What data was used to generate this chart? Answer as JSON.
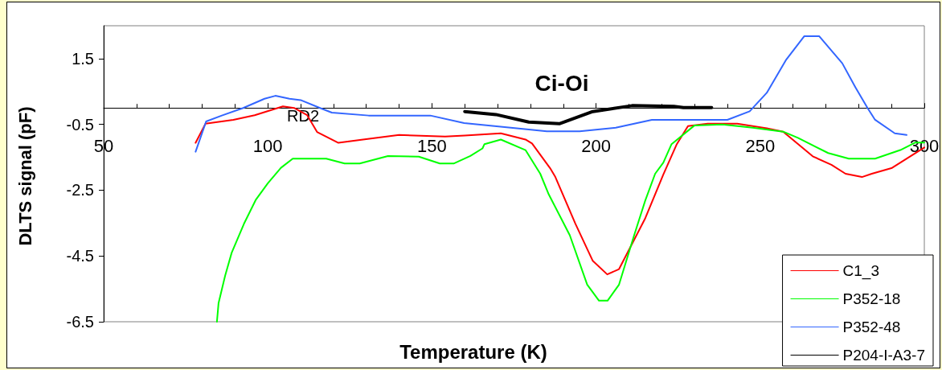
{
  "chart_data": {
    "type": "line",
    "xlabel": "Temperature (K)",
    "ylabel": "DLTS signal (pF)",
    "xlim": [
      50,
      300
    ],
    "xticks": [
      50,
      100,
      150,
      200,
      250,
      300
    ],
    "ylim": [
      -6.5,
      2.5
    ],
    "yticks": [
      -6.5,
      -4.5,
      -2.5,
      -0.5,
      1.5
    ],
    "grid": false,
    "legend": "bottom right",
    "marker": "none",
    "line_style": "solid",
    "annotations": [
      "RD2",
      "Ci-Oi"
    ],
    "series": [
      {
        "name": "C1_3",
        "color": "#ff0000",
        "x": [
          78,
          81,
          89.5,
          96,
          104.6,
          108,
          112,
          115,
          121.5,
          129,
          140,
          154,
          160,
          166,
          171,
          178.5,
          180.5,
          186,
          187.6,
          193.7,
          199,
          203.4,
          207,
          215,
          220.5,
          224.6,
          228,
          234,
          243,
          252,
          257,
          266,
          271.7,
          276,
          281,
          284,
          290,
          300
        ],
        "values": [
          -1.06,
          -0.48,
          -0.36,
          -0.22,
          0.05,
          0,
          -0.22,
          -0.73,
          -1.06,
          -0.96,
          -0.82,
          -0.87,
          -0.84,
          -0.8,
          -0.77,
          -0.96,
          -1.08,
          -1.83,
          -2.1,
          -3.52,
          -4.65,
          -5.06,
          -4.9,
          -3.35,
          -2.02,
          -1.1,
          -0.55,
          -0.48,
          -0.48,
          -0.62,
          -0.72,
          -1.47,
          -1.73,
          -2.0,
          -2.1,
          -2.0,
          -1.83,
          -1.2
        ]
      },
      {
        "name": "P352-18",
        "color": "#00ff00",
        "x": [
          84.5,
          85,
          87,
          89,
          92.7,
          96.3,
          100,
          104,
          107.6,
          117.8,
          123.4,
          128,
          136.6,
          146,
          152.4,
          156.6,
          161.7,
          165.4,
          166,
          171,
          178.5,
          183,
          185.6,
          192,
          197.3,
          200.9,
          203.5,
          207,
          211.6,
          215,
          218,
          220.5,
          223,
          230,
          238.5,
          247.7,
          257,
          261.5,
          270.7,
          277,
          285,
          292.7,
          297.3,
          300
        ],
        "values": [
          -6.5,
          -5.93,
          -5.1,
          -4.4,
          -3.53,
          -2.8,
          -2.29,
          -1.82,
          -1.54,
          -1.54,
          -1.69,
          -1.69,
          -1.46,
          -1.48,
          -1.69,
          -1.69,
          -1.46,
          -1.23,
          -1.1,
          -0.96,
          -1.28,
          -2.0,
          -2.63,
          -3.87,
          -5.37,
          -5.86,
          -5.86,
          -5.37,
          -3.87,
          -2.81,
          -2.0,
          -1.66,
          -1.1,
          -0.53,
          -0.5,
          -0.6,
          -0.72,
          -0.91,
          -1.37,
          -1.54,
          -1.54,
          -1.28,
          -1.05,
          -1.05
        ]
      },
      {
        "name": "P352-48",
        "color": "#3366ff",
        "x": [
          78,
          81.2,
          86,
          92.5,
          99,
          102.3,
          106.6,
          110,
          115.9,
          119.5,
          130.7,
          149.5,
          159.8,
          174,
          185,
          195,
          206,
          217,
          230,
          240,
          246.8,
          252,
          257.8,
          263.4,
          268,
          275,
          279,
          282.7,
          285,
          291,
          294.6
        ],
        "values": [
          -1.33,
          -0.41,
          -0.23,
          0,
          0.28,
          0.37,
          0.28,
          0.24,
          0,
          -0.14,
          -0.23,
          -0.23,
          -0.46,
          -0.6,
          -0.71,
          -0.71,
          -0.6,
          -0.36,
          -0.36,
          -0.36,
          -0.1,
          0.46,
          1.45,
          2.18,
          2.18,
          1.36,
          0.63,
          0,
          -0.36,
          -0.77,
          -0.82
        ]
      },
      {
        "name": "P204-I-A3-7",
        "color": "#000000",
        "x": [
          160,
          169.5,
          179.5,
          188.8,
          199,
          211,
          223.7,
          226.6,
          235.2
        ],
        "values": [
          -0.11,
          -0.2,
          -0.43,
          -0.48,
          -0.11,
          0.07,
          0.05,
          0.01,
          0.01
        ]
      }
    ]
  }
}
